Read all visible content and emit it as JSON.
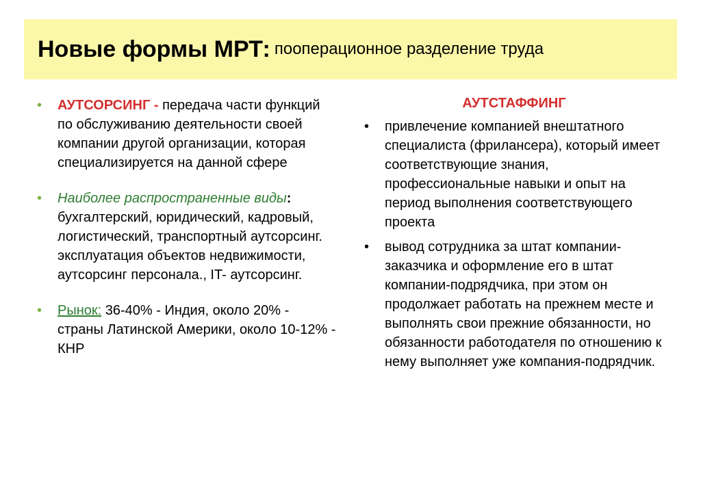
{
  "colors": {
    "title_bg": "#fcf8a9",
    "title_text": "#000000",
    "bullet_left": "#7cb342",
    "bullet_right": "#000000",
    "accent_red": "#d32f2f",
    "accent_green": "#2e7d32",
    "text": "#000000"
  },
  "title": {
    "main": "Новые формы МРТ:",
    "sub": "пооперационное разделение труда"
  },
  "left": {
    "item1": {
      "lead": "АУТСОРСИНГ - ",
      "rest": "передача части функций по обслуживанию деятельности своей компании другой организации, которая специализируется на данной сфере"
    },
    "item2": {
      "lead": " Наиболее распространенные виды",
      "colon": ": ",
      "rest": "бухгалтерский, юридический,  кадровый,  логистический, транспортный аутсорсинг. эксплуатация объектов недвижимости, аутсорсинг персонала., IT- аутсорсинг."
    },
    "item3": {
      "lead": "Рынок:",
      "rest": " 36-40% - Индия, около 20% - страны Латинской Америки, около 10-12% - КНР"
    }
  },
  "right": {
    "heading": "АУТСТАФФИНГ",
    "item1": "привлечение компанией внештатного специалиста (фрилансера), который имеет соответствующие знания, профессиональные навыки и опыт на период выполнения соответствующего проекта",
    "item2": "вывод сотрудника за штат компании-заказчика и оформление его в штат компании-подрядчика, при этом он продолжает работать на прежнем месте и выполнять свои прежние обязанности, но обязанности работодателя по отношению к нему выполняет уже компания-подрядчик."
  }
}
